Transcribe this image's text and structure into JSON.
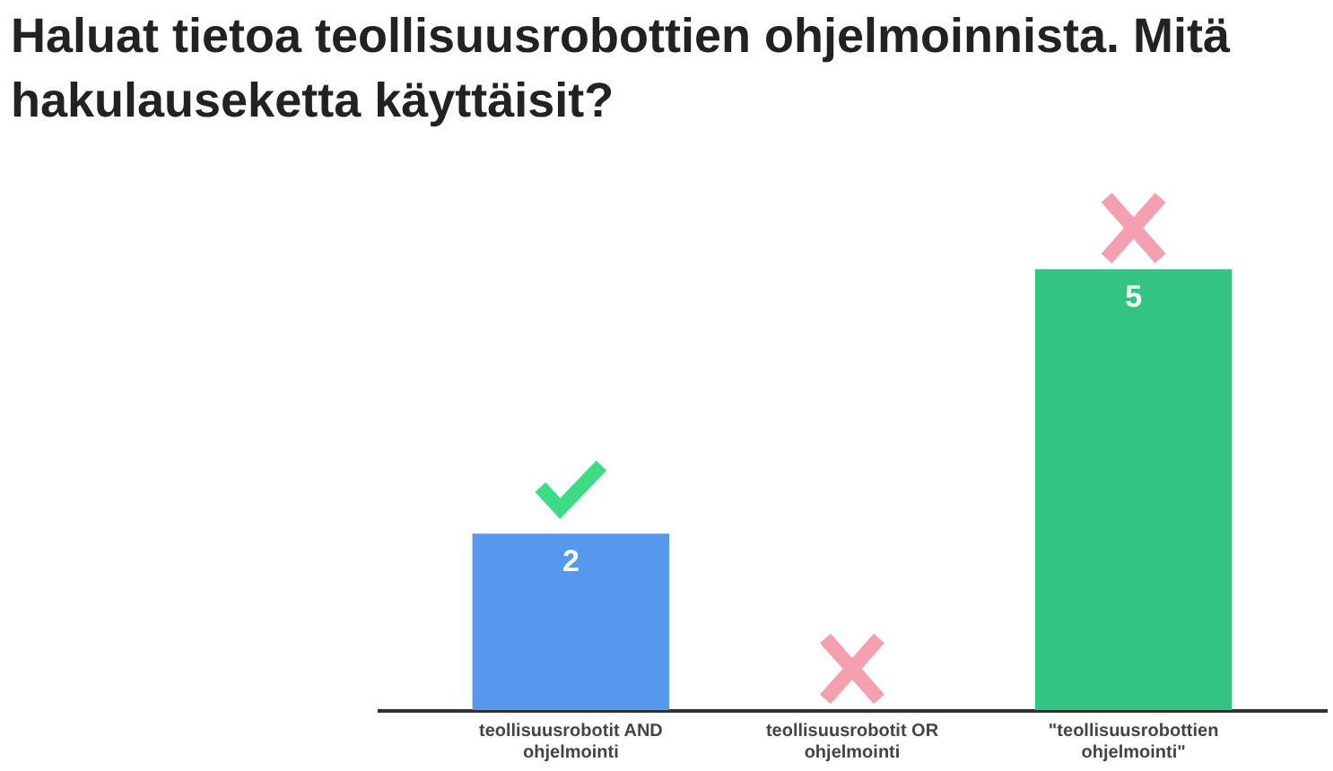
{
  "chart_data": {
    "type": "bar",
    "title": "Haluat tietoa teollisuusrobottien ohjelmoinnista. Mitä hakulauseketta käyttäisit?",
    "categories": [
      "teollisuusrobotit AND\nohjelmointi",
      "teollisuusrobotit OR\nohjelmointi",
      "\"teollisuusrobottien\nohjelmointi\""
    ],
    "values": [
      2,
      0,
      5
    ],
    "colors": [
      "#5599ee",
      "#c8c8c8",
      "#33c481"
    ],
    "value_labels": [
      "2",
      null,
      "5"
    ],
    "ylim": [
      0,
      6
    ]
  }
}
